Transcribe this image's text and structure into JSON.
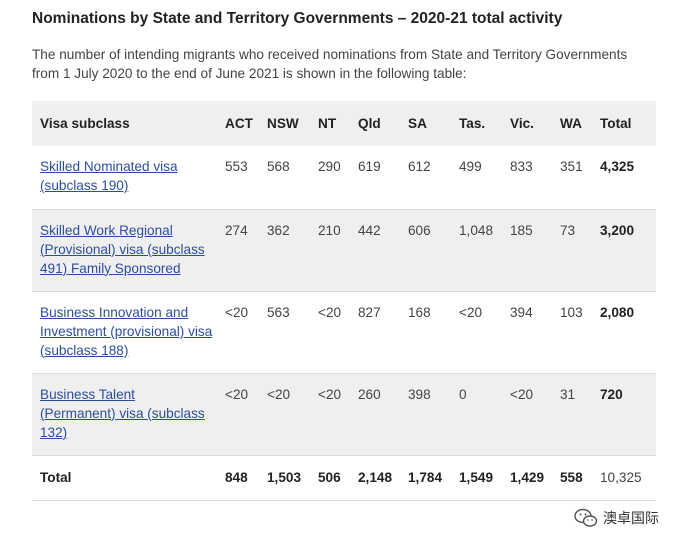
{
  "title": "Nominations by State and Territory Governments – 2020-21 total activity",
  "intro": "The number of intending migrants who received nominations from State and Territory Governments from 1 July 2020 to the end of June 2021 is shown in the following table:",
  "table": {
    "headers": [
      "Visa subclass",
      "ACT",
      "NSW",
      "NT",
      "Qld",
      "SA",
      "Tas.",
      "Vic.",
      "WA",
      "Total"
    ],
    "rows": [
      {
        "visa": "Skilled Nominated visa (subclass 190)",
        "values": [
          "553",
          "568",
          "290",
          "619",
          "612",
          "499",
          "833",
          "351"
        ],
        "total": "4,325"
      },
      {
        "visa": "Skilled Work Regional (Provisional) visa (subclass 491) Family Sponsored",
        "values": [
          "274",
          "362",
          "210",
          "442",
          "606",
          "1,048",
          "185",
          "73"
        ],
        "total": "3,200"
      },
      {
        "visa": "Business Innovation and Investment (provisional) visa (subclass 188)",
        "values": [
          "<20",
          "563",
          "<20",
          "827",
          "168",
          "<20",
          "394",
          "103"
        ],
        "total": "2,080"
      },
      {
        "visa": "Business Talent (Permanent) visa (subclass 132)",
        "values": [
          "<20",
          "<20",
          "<20",
          "260",
          "398",
          "0",
          "<20",
          "31"
        ],
        "total": "720"
      }
    ],
    "total_row": {
      "label": "Total",
      "values": [
        "848",
        "1,503",
        "506",
        "2,148",
        "1,784",
        "1,549",
        "1,429",
        "558"
      ],
      "total": "10,325"
    }
  },
  "watermark": {
    "text": "澳卓国际",
    "icon": "wechat-icon"
  }
}
